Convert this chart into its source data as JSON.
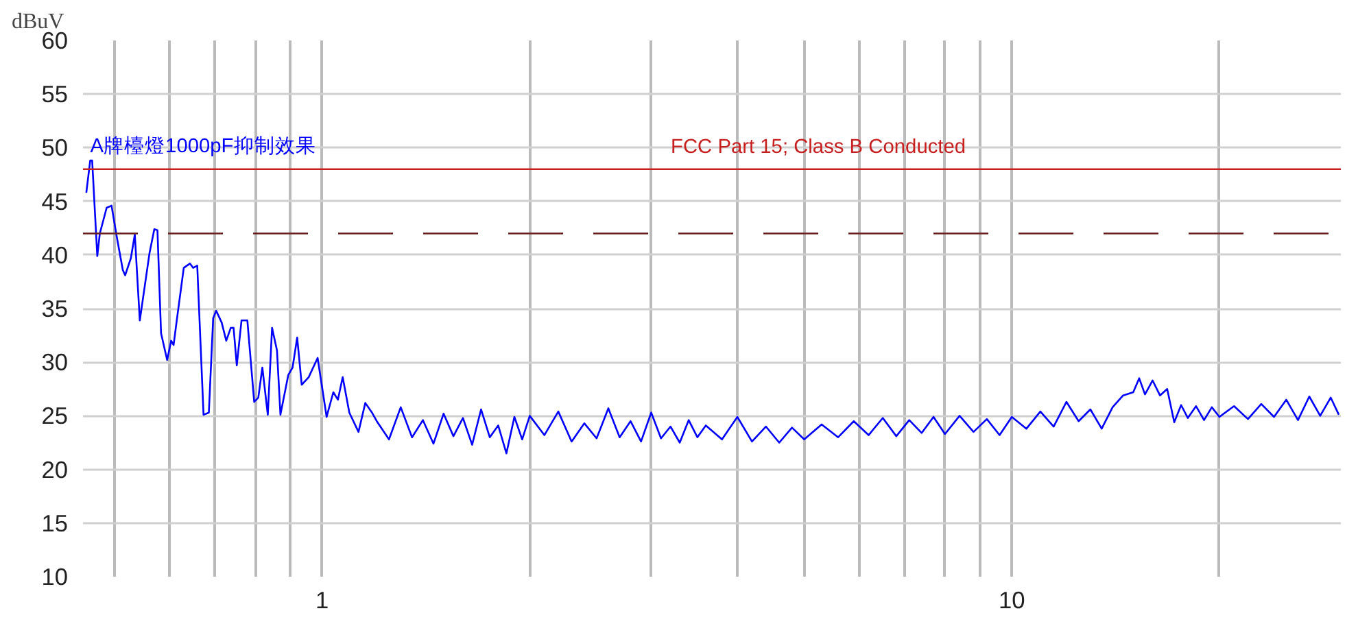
{
  "chart_data": {
    "type": "line",
    "ylabel": "dBuV",
    "log": "x",
    "grid": true,
    "legend": false,
    "marker": "none",
    "line_style": "solid",
    "xlim": [
      0.45,
      30
    ],
    "xticks": [
      {
        "value": 0.5,
        "label": null
      },
      {
        "value": 0.6,
        "label": null
      },
      {
        "value": 0.7,
        "label": null
      },
      {
        "value": 0.8,
        "label": null
      },
      {
        "value": 0.9,
        "label": null
      },
      1,
      {
        "value": 2,
        "label": null
      },
      {
        "value": 3,
        "label": null
      },
      {
        "value": 4,
        "label": null
      },
      {
        "value": 5,
        "label": null
      },
      {
        "value": 6,
        "label": null
      },
      {
        "value": 7,
        "label": null
      },
      {
        "value": 8,
        "label": null
      },
      {
        "value": 9,
        "label": null
      },
      10,
      {
        "value": 20,
        "label": null
      }
    ],
    "ylim": [
      10,
      60
    ],
    "yticks": [
      10,
      15,
      20,
      25,
      30,
      35,
      40,
      45,
      50,
      55,
      60
    ],
    "ref_lines": [
      {
        "axis": "y",
        "value": 48,
        "label": "FCC Part 15; Class B Conducted",
        "color": "#c81e1e",
        "line_style": "solid"
      },
      {
        "axis": "y",
        "value": 42,
        "label": null,
        "color": "#6b1f1f",
        "line_style": "dashed"
      }
    ],
    "series": [
      {
        "name": "A牌檯燈1000pF抑制效果",
        "color": "#0000ff",
        "x": [
          0.455,
          0.461,
          0.464,
          0.472,
          0.476,
          0.487,
          0.495,
          0.504,
          0.514,
          0.518,
          0.528,
          0.535,
          0.544,
          0.562,
          0.571,
          0.577,
          0.584,
          0.596,
          0.604,
          0.609,
          0.616,
          0.63,
          0.643,
          0.65,
          0.659,
          0.673,
          0.685,
          0.695,
          0.702,
          0.715,
          0.726,
          0.737,
          0.744,
          0.752,
          0.764,
          0.779,
          0.797,
          0.808,
          0.819,
          0.834,
          0.846,
          0.86,
          0.87,
          0.893,
          0.906,
          0.92,
          0.934,
          0.956,
          0.985,
          1.015,
          1.038,
          1.054,
          1.071,
          1.095,
          1.129,
          1.155,
          1.181,
          1.2,
          1.25,
          1.3,
          1.35,
          1.4,
          1.45,
          1.5,
          1.55,
          1.6,
          1.65,
          1.7,
          1.75,
          1.8,
          1.85,
          1.9,
          1.95,
          2.0,
          2.1,
          2.2,
          2.3,
          2.4,
          2.5,
          2.6,
          2.7,
          2.8,
          2.9,
          3.0,
          3.1,
          3.2,
          3.3,
          3.4,
          3.5,
          3.6,
          3.8,
          4.0,
          4.2,
          4.4,
          4.6,
          4.8,
          5.0,
          5.3,
          5.6,
          5.9,
          6.2,
          6.5,
          6.8,
          7.1,
          7.4,
          7.7,
          8.0,
          8.4,
          8.8,
          9.2,
          9.6,
          10.0,
          10.5,
          11.0,
          11.5,
          12.0,
          12.5,
          13.0,
          13.5,
          14.0,
          14.5,
          15.0,
          15.3,
          15.6,
          16.0,
          16.4,
          16.8,
          17.2,
          17.6,
          18.0,
          18.5,
          19.0,
          19.5,
          20.0,
          21.0,
          22.0,
          23.0,
          24.0,
          25.0,
          26.0,
          27.0,
          28.0,
          29.0,
          29.8
        ],
        "values": [
          45.8,
          48.8,
          48.8,
          39.9,
          42.0,
          44.4,
          44.6,
          41.6,
          38.6,
          38.1,
          39.7,
          41.9,
          33.9,
          40.2,
          42.4,
          42.3,
          32.7,
          30.2,
          32.0,
          31.6,
          34.1,
          38.8,
          39.2,
          38.8,
          39.0,
          25.1,
          25.3,
          34.1,
          34.8,
          33.7,
          32.0,
          33.2,
          33.2,
          29.7,
          33.9,
          33.9,
          26.3,
          26.7,
          29.5,
          25.1,
          33.2,
          31.1,
          25.1,
          28.8,
          29.5,
          32.3,
          27.9,
          28.6,
          30.4,
          24.9,
          27.2,
          26.5,
          28.6,
          25.3,
          23.5,
          26.2,
          25.3,
          24.5,
          22.8,
          25.8,
          23.0,
          24.6,
          22.4,
          25.2,
          23.1,
          24.8,
          22.3,
          25.6,
          23.0,
          24.1,
          21.5,
          24.9,
          22.8,
          25.0,
          23.2,
          25.4,
          22.6,
          24.3,
          22.9,
          25.7,
          23.0,
          24.5,
          22.6,
          25.3,
          22.9,
          24.0,
          22.5,
          24.6,
          23.0,
          24.1,
          22.8,
          24.9,
          22.6,
          24.0,
          22.5,
          23.9,
          22.8,
          24.2,
          23.0,
          24.5,
          23.2,
          24.8,
          23.1,
          24.6,
          23.4,
          24.9,
          23.3,
          25.0,
          23.5,
          24.7,
          23.2,
          24.9,
          23.8,
          25.4,
          24.0,
          26.3,
          24.5,
          25.6,
          23.8,
          25.8,
          26.9,
          27.2,
          28.5,
          27.0,
          28.3,
          26.9,
          27.5,
          24.4,
          26.0,
          24.8,
          25.9,
          24.6,
          25.8,
          24.9,
          25.9,
          24.7,
          26.1,
          24.9,
          26.5,
          24.6,
          26.8,
          25.0,
          26.7,
          25.1
        ]
      }
    ]
  }
}
